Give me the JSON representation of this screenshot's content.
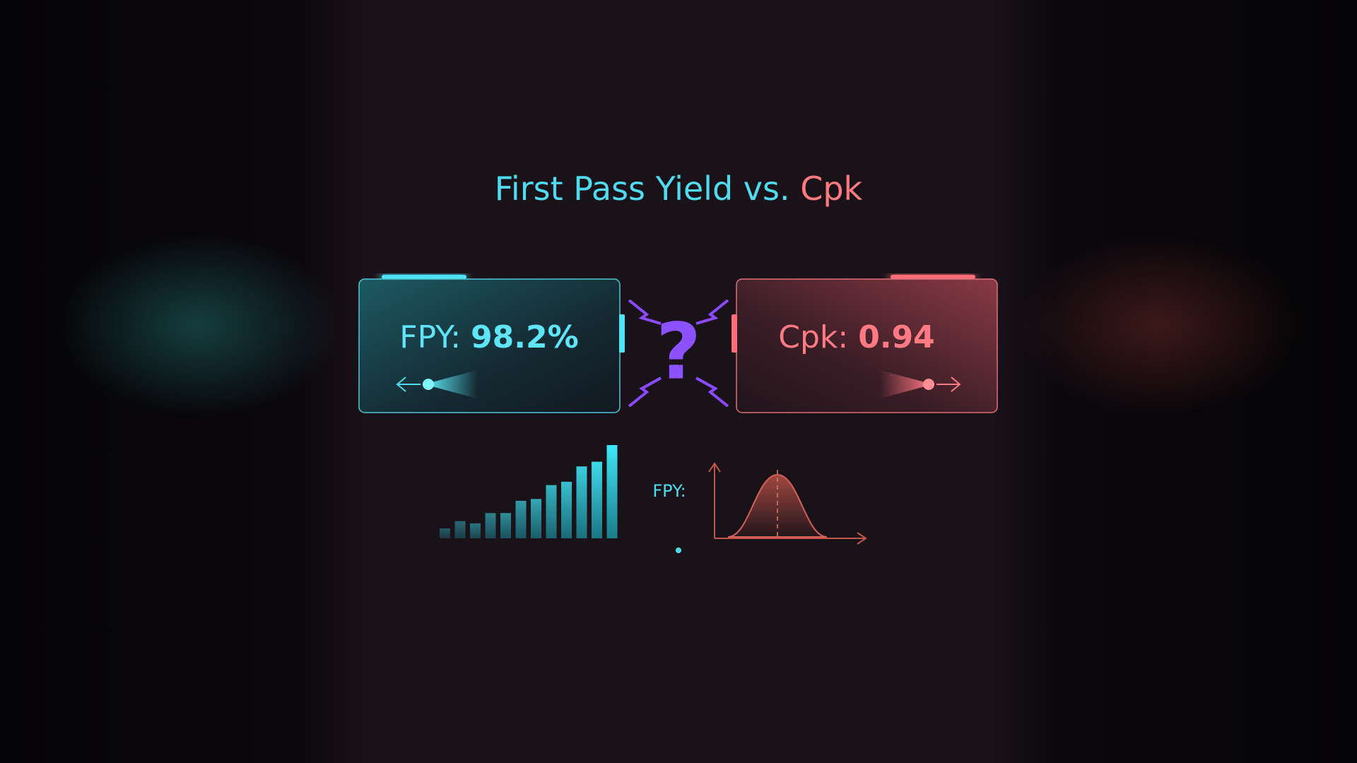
{
  "title": {
    "prefix": "First Pass Yield vs.",
    "highlight": "Cpk"
  },
  "cards": [
    {
      "label": "FPY:",
      "value": "98.2%"
    },
    {
      "label": "Cpk:",
      "value": "0.94"
    }
  ],
  "versus_symbol": "?",
  "mini_chart_label": "FPY:"
}
